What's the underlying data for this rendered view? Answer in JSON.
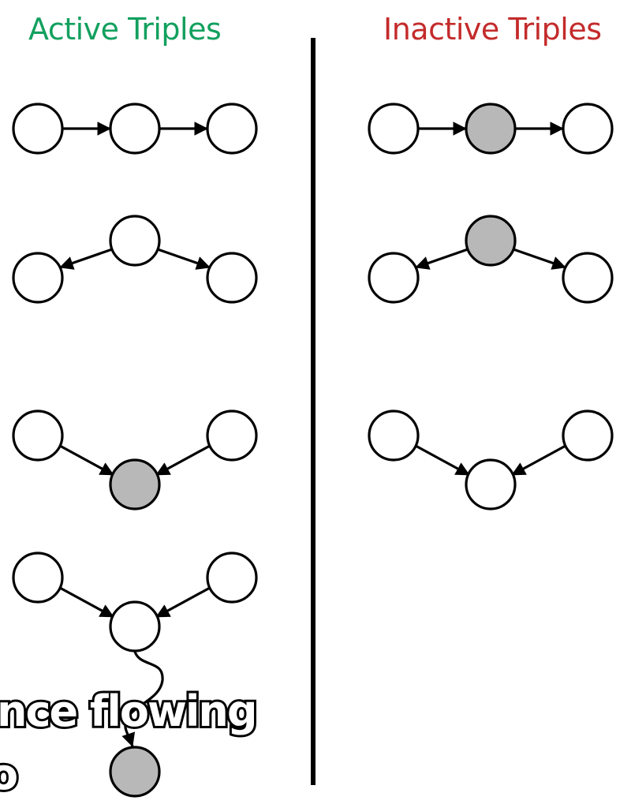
{
  "headings": {
    "active": "Active Triples",
    "inactive": "Inactive Triples"
  },
  "colors": {
    "active_heading": "#12a05e",
    "inactive_heading": "#c42b2b",
    "observed_node_fill": "#b8b8b8",
    "hidden_node_fill": "#ffffff",
    "line": "#000000"
  },
  "caption": {
    "line1": "nce flowing",
    "line2": "o"
  }
}
